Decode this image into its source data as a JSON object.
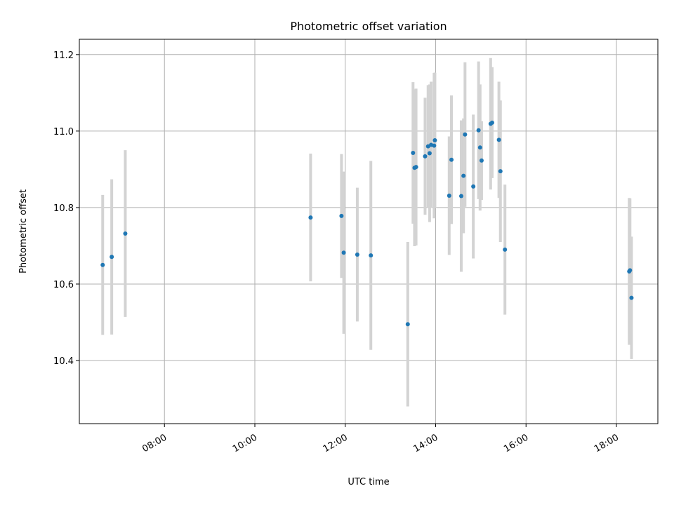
{
  "chart_data": {
    "type": "scatter",
    "title": "Photometric offset variation",
    "xlabel": "UTC time",
    "ylabel": "Photometric offset",
    "xlim": [
      "06:07",
      "18:55"
    ],
    "ylim": [
      10.235,
      11.24
    ],
    "x_ticks": [
      "08:00",
      "10:00",
      "12:00",
      "14:00",
      "16:00",
      "18:00"
    ],
    "y_ticks": [
      10.4,
      10.6,
      10.8,
      11.0,
      11.2
    ],
    "grid": true,
    "colors": {
      "marker": "#1f77b4",
      "errorbar": "#d3d3d3",
      "grid": "#b0b0b0"
    },
    "points": [
      {
        "x": "06:38",
        "y": 10.65,
        "err": 0.183
      },
      {
        "x": "06:50",
        "y": 10.671,
        "err": 0.203
      },
      {
        "x": "07:08",
        "y": 10.732,
        "err": 0.218
      },
      {
        "x": "11:14",
        "y": 10.774,
        "err": 0.167
      },
      {
        "x": "11:55",
        "y": 10.778,
        "err": 0.162
      },
      {
        "x": "11:58",
        "y": 10.682,
        "err": 0.212
      },
      {
        "x": "12:16",
        "y": 10.677,
        "err": 0.175
      },
      {
        "x": "12:34",
        "y": 10.675,
        "err": 0.247
      },
      {
        "x": "13:23",
        "y": 10.495,
        "err": 0.215
      },
      {
        "x": "13:30",
        "y": 10.943,
        "err": 0.185
      },
      {
        "x": "13:32",
        "y": 10.904,
        "err": 0.205
      },
      {
        "x": "13:34",
        "y": 10.906,
        "err": 0.205
      },
      {
        "x": "13:46",
        "y": 10.934,
        "err": 0.153
      },
      {
        "x": "13:50",
        "y": 10.96,
        "err": 0.16
      },
      {
        "x": "13:52",
        "y": 10.942,
        "err": 0.18
      },
      {
        "x": "13:54",
        "y": 10.964,
        "err": 0.165
      },
      {
        "x": "13:58",
        "y": 10.962,
        "err": 0.19
      },
      {
        "x": "13:59",
        "y": 10.976,
        "err": 0.177
      },
      {
        "x": "14:18",
        "y": 10.831,
        "err": 0.155
      },
      {
        "x": "14:21",
        "y": 10.925,
        "err": 0.168
      },
      {
        "x": "14:34",
        "y": 10.83,
        "err": 0.198
      },
      {
        "x": "14:37",
        "y": 10.883,
        "err": 0.15
      },
      {
        "x": "14:39",
        "y": 10.991,
        "err": 0.189
      },
      {
        "x": "14:50",
        "y": 10.855,
        "err": 0.188
      },
      {
        "x": "14:57",
        "y": 11.002,
        "err": 0.18
      },
      {
        "x": "14:59",
        "y": 10.957,
        "err": 0.165
      },
      {
        "x": "15:01",
        "y": 10.923,
        "err": 0.103
      },
      {
        "x": "15:13",
        "y": 11.019,
        "err": 0.172
      },
      {
        "x": "15:15",
        "y": 11.022,
        "err": 0.145
      },
      {
        "x": "15:24",
        "y": 10.977,
        "err": 0.152
      },
      {
        "x": "15:26",
        "y": 10.895,
        "err": 0.185
      },
      {
        "x": "15:32",
        "y": 10.69,
        "err": 0.17
      },
      {
        "x": "18:17",
        "y": 10.633,
        "err": 0.192
      },
      {
        "x": "18:18",
        "y": 10.636,
        "err": 0.188
      },
      {
        "x": "18:20",
        "y": 10.564,
        "err": 0.16
      }
    ]
  }
}
